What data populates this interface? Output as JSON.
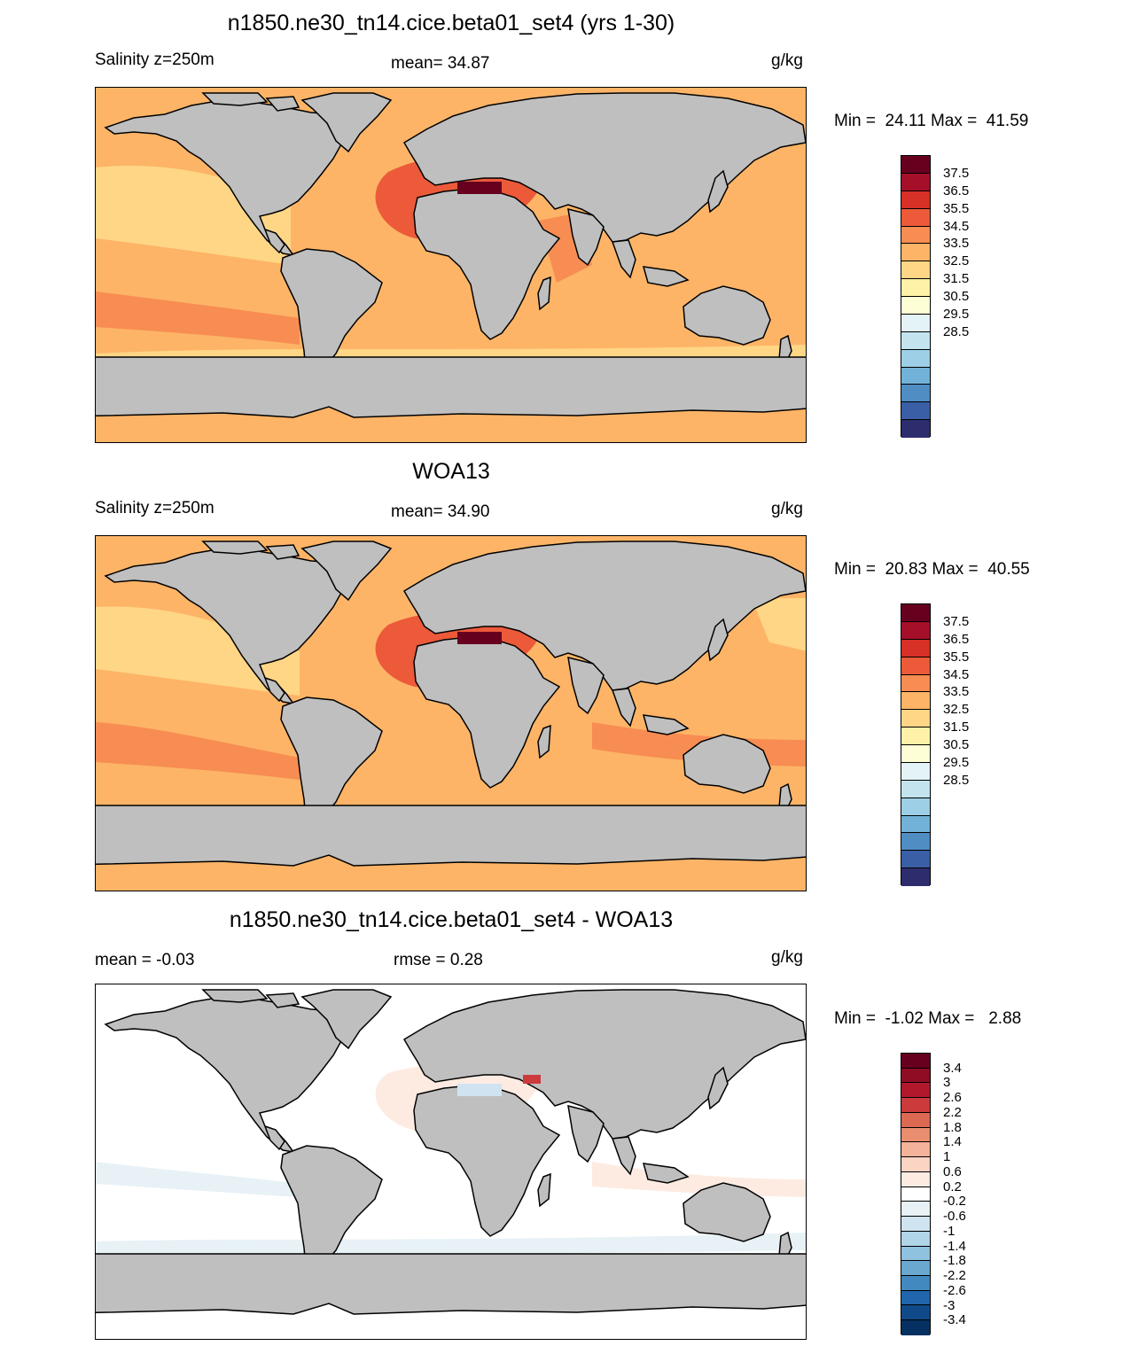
{
  "panels": [
    {
      "title": "n1850.ne30_tn14.cice.beta01_set4 (yrs 1-30)",
      "left": "Salinity z=250m",
      "center": "mean=  34.87",
      "units": "g/kg",
      "minmax": "Min =  24.11 Max =  41.59",
      "colorbar_labels": [
        "37.5",
        "36.5",
        "35.5",
        "34.5",
        "33.5",
        "32.5",
        "31.5",
        "30.5",
        "29.5",
        "28.5"
      ]
    },
    {
      "title": "WOA13",
      "left": "Salinity z=250m",
      "center": "mean=  34.90",
      "units": "g/kg",
      "minmax": "Min =  20.83 Max =  40.55",
      "colorbar_labels": [
        "37.5",
        "36.5",
        "35.5",
        "34.5",
        "33.5",
        "32.5",
        "31.5",
        "30.5",
        "29.5",
        "28.5"
      ]
    },
    {
      "title": "n1850.ne30_tn14.cice.beta01_set4 - WOA13",
      "left": "mean =  -0.03",
      "center": "rmse =   0.28",
      "units": "g/kg",
      "minmax": "Min =  -1.02 Max =   2.88",
      "colorbar_labels": [
        "3.4",
        "3",
        "2.6",
        "2.2",
        "1.8",
        "1.4",
        "1",
        "0.6",
        "0.2",
        "-0.2",
        "-0.6",
        "-1",
        "-1.4",
        "-1.8",
        "-2.2",
        "-2.6",
        "-3",
        "-3.4"
      ]
    }
  ],
  "colors": {
    "land": "#bfbfbf",
    "abs_colorbar": [
      "#67001f",
      "#a50f2a",
      "#d73027",
      "#ec5a3a",
      "#f78d52",
      "#fdb467",
      "#fed686",
      "#fff2a8",
      "#fefed6",
      "#e4f3f7",
      "#c3e4ef",
      "#9dd0e6",
      "#73b2d8",
      "#4f8dc3",
      "#3b5fa6",
      "#2d2d6d"
    ],
    "diff_colorbar": [
      "#67001f",
      "#900c24",
      "#b2182b",
      "#cc3a3c",
      "#dc6a53",
      "#ea8e70",
      "#f5b29a",
      "#fbd4c4",
      "#fdebe2",
      "#ffffff",
      "#e7f1f6",
      "#cfe4f0",
      "#b1d5e8",
      "#8fc2de",
      "#6aa8d0",
      "#4289bf",
      "#2166ac",
      "#114a88",
      "#053061"
    ]
  }
}
